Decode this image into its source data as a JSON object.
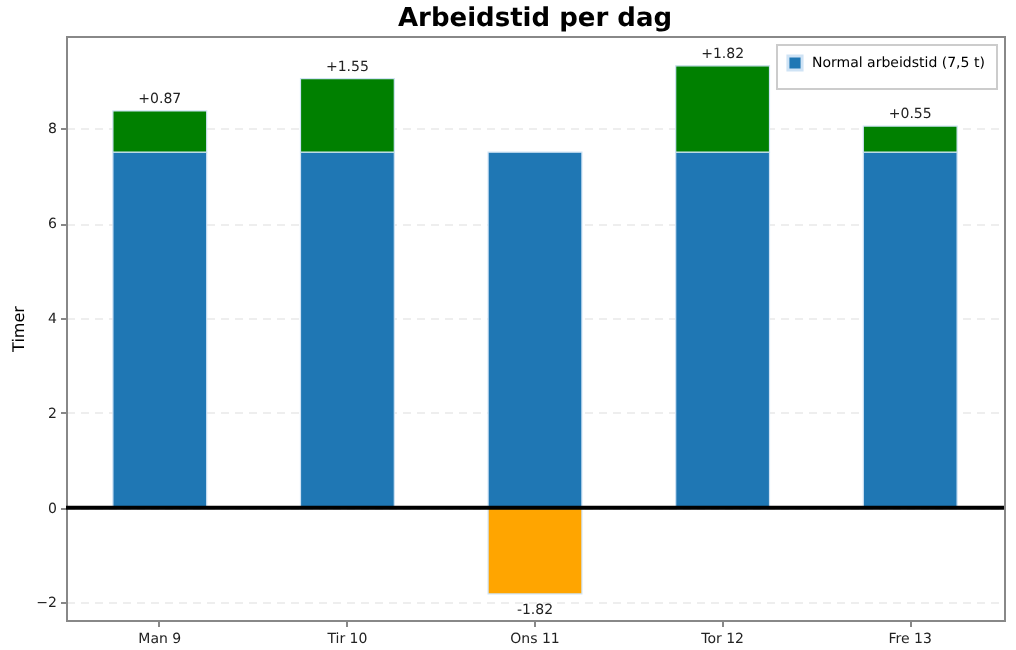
{
  "chart_data": {
    "type": "bar",
    "title": "Arbeidstid per dag",
    "ylabel": "Timer",
    "categories": [
      "Man 9",
      "Tir 10",
      "Ons 11",
      "Tor 12",
      "Fre 13"
    ],
    "stacked": true,
    "series": [
      {
        "name": "Normal arbeidstid (7,5 t)",
        "color": "#1f77b4",
        "values": [
          7.5,
          7.5,
          7.5,
          7.5,
          7.5
        ]
      },
      {
        "color": "#008000",
        "values": [
          0.87,
          1.55,
          null,
          1.82,
          0.55
        ],
        "value_labels": [
          "+0.87",
          "+1.55",
          null,
          "+1.82",
          "+0.55"
        ]
      },
      {
        "color": "#ffa500",
        "values": [
          null,
          null,
          -1.82,
          null,
          null
        ],
        "value_labels": [
          null,
          null,
          "-1.82",
          null,
          null
        ]
      }
    ],
    "ylim": [
      -2.37,
      9.95
    ],
    "yticks": [
      -2,
      0,
      2,
      4,
      6,
      8
    ],
    "ref_lines": [
      {
        "axis": "y",
        "value": 0,
        "color": "#000000"
      }
    ],
    "grid": "y",
    "legend": "top right"
  }
}
